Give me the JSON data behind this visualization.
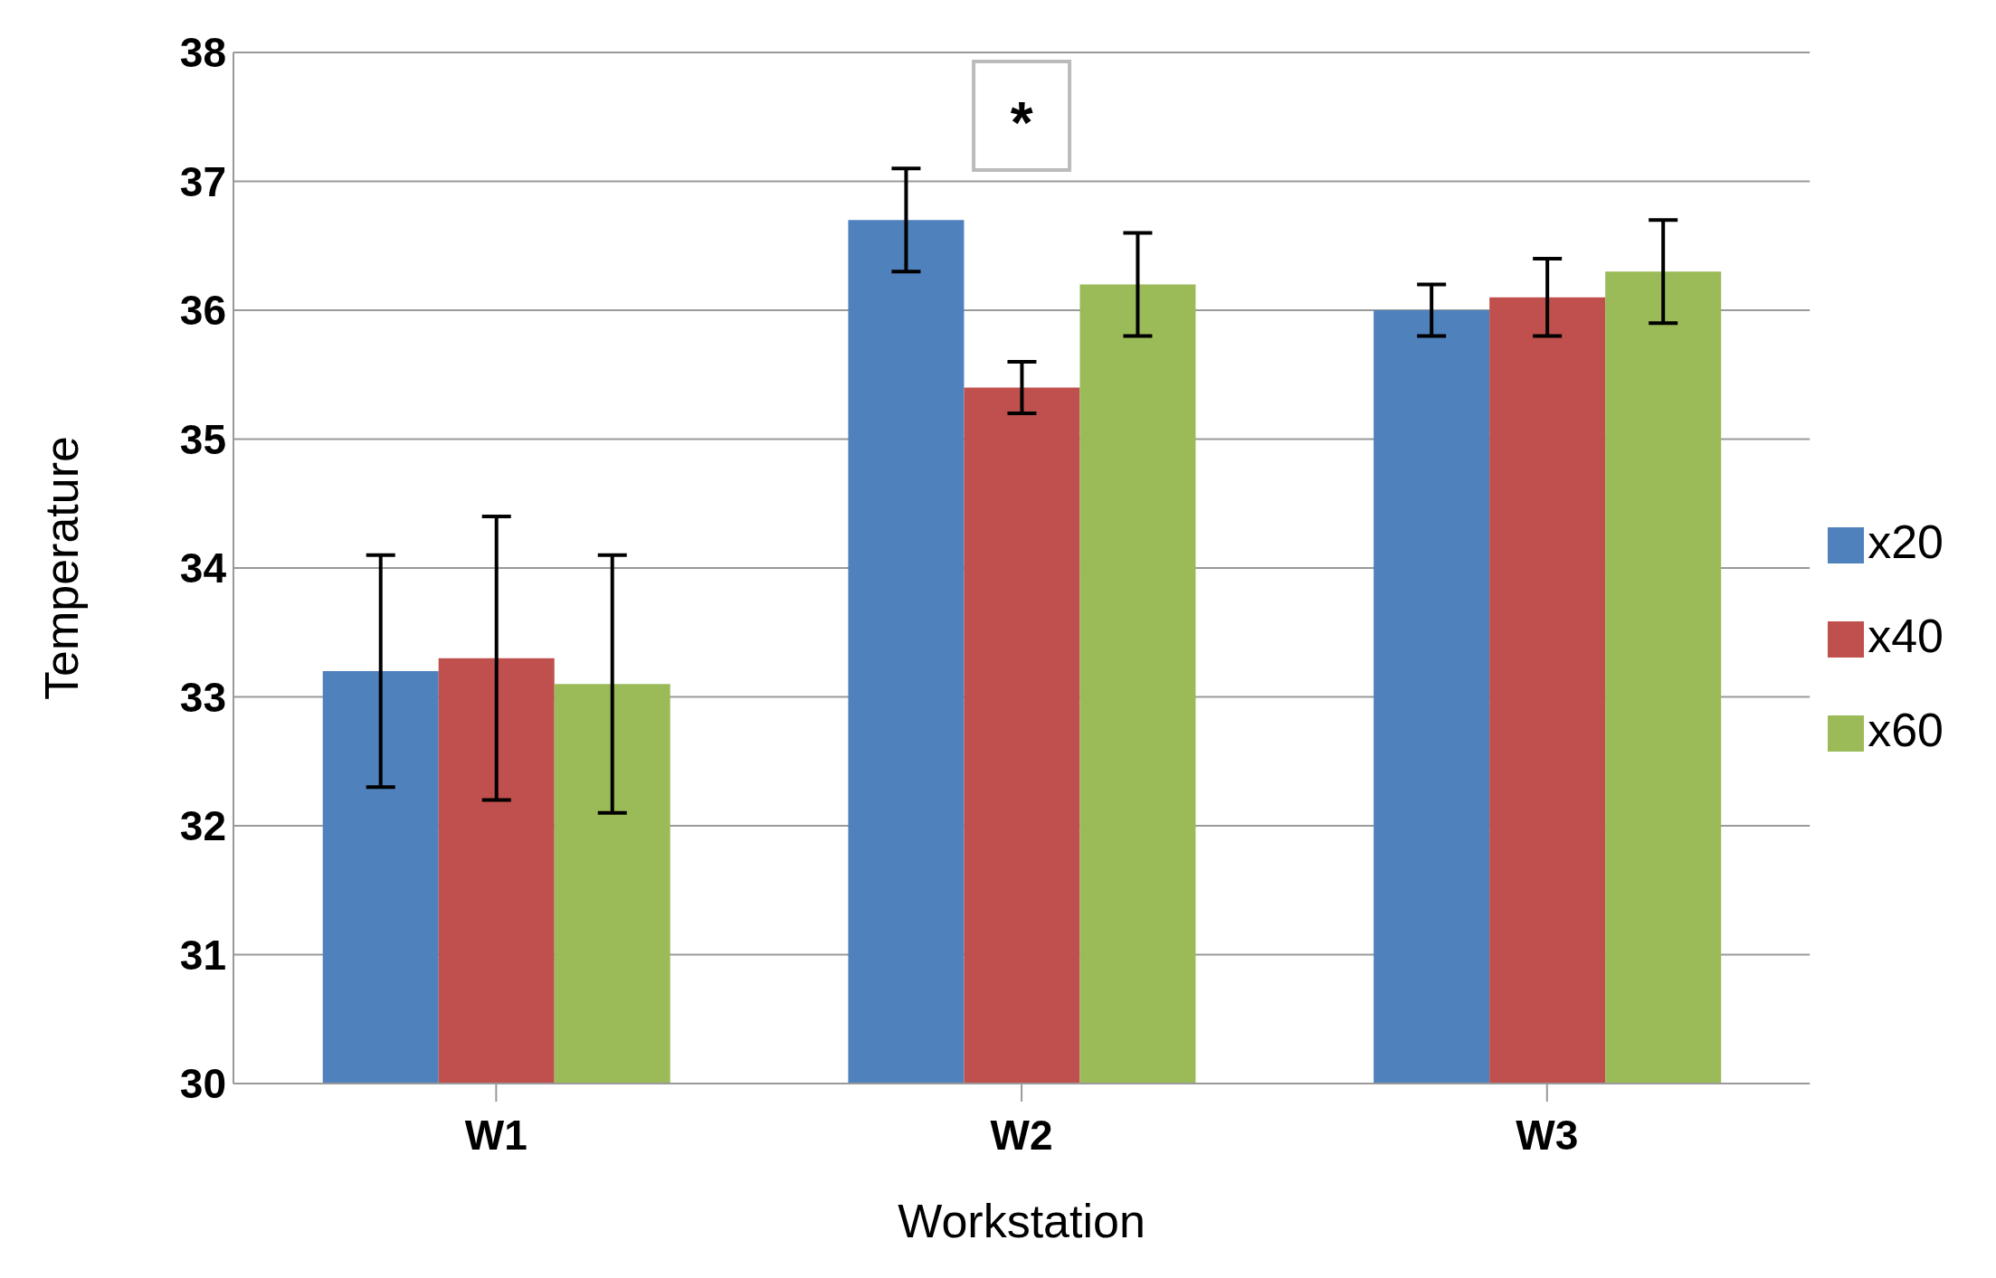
{
  "chart_data": {
    "type": "bar",
    "xlabel": "Workstation",
    "ylabel": "Temperature",
    "categories": [
      "W1",
      "W2",
      "W3"
    ],
    "series": [
      {
        "name": "x20",
        "color": "#4f81bd",
        "values": [
          33.2,
          36.7,
          36.0
        ],
        "errors": [
          0.9,
          0.4,
          0.2
        ]
      },
      {
        "name": "x40",
        "color": "#c0504d",
        "values": [
          33.3,
          35.4,
          36.1
        ],
        "errors": [
          1.1,
          0.2,
          0.3
        ]
      },
      {
        "name": "x60",
        "color": "#9bbb59",
        "values": [
          33.1,
          36.2,
          36.3
        ],
        "errors": [
          1.0,
          0.4,
          0.4
        ]
      }
    ],
    "ylim": [
      30,
      38
    ],
    "yticks": [
      30,
      31,
      32,
      33,
      34,
      35,
      36,
      37,
      38
    ],
    "grid": "y",
    "legend": "right",
    "annotations": [
      "*"
    ]
  }
}
